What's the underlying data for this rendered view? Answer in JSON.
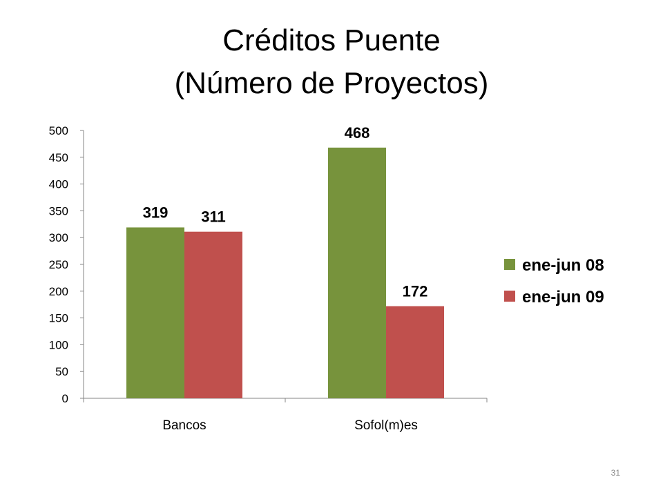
{
  "slide": {
    "title_line1": "Créditos Puente",
    "title_line2": "(Número de Proyectos)",
    "page_number": "31"
  },
  "chart_data": {
    "type": "bar",
    "categories": [
      "Bancos",
      "Sofol(m)es"
    ],
    "series": [
      {
        "name": "ene-jun 08",
        "values": [
          319,
          468
        ],
        "color": "#77933C"
      },
      {
        "name": "ene-jun 09",
        "values": [
          311,
          172
        ],
        "color": "#C0504D"
      }
    ],
    "ylim": [
      0,
      500
    ],
    "yticks": [
      0,
      50,
      100,
      150,
      200,
      250,
      300,
      350,
      400,
      450,
      500
    ],
    "grid": false,
    "data_labels": true,
    "legend_position": "right"
  }
}
